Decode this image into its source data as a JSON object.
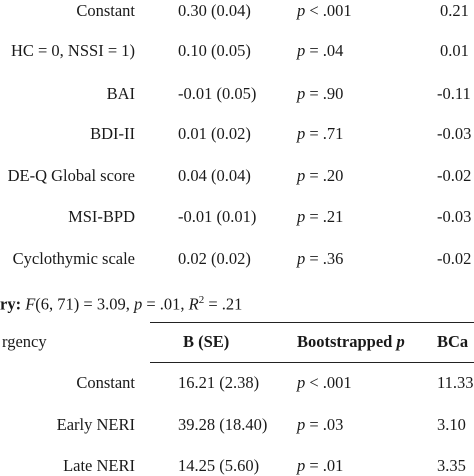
{
  "table": {
    "top_rows": [
      {
        "label": "Constant",
        "b": "0.30 (0.04)",
        "p_prefix": "p",
        "p_val": "< .001",
        "bca": "0.21"
      },
      {
        "label": "HC = 0, NSSI = 1)",
        "b": "0.10 (0.05)",
        "p_prefix": "p",
        "p_val": "= .04",
        "bca": "0.01"
      },
      {
        "label": "BAI",
        "b": "-0.01 (0.05)",
        "p_prefix": "p",
        "p_val": "= .90",
        "bca": "-0.11"
      },
      {
        "label": "BDI-II",
        "b": "0.01 (0.02)",
        "p_prefix": "p",
        "p_val": "= .71",
        "bca": "-0.03"
      },
      {
        "label": "DE-Q Global score",
        "b": "0.04 (0.04)",
        "p_prefix": "p",
        "p_val": "= .20",
        "bca": "-0.02"
      },
      {
        "label": "MSI-BPD",
        "b": "-0.01 (0.01)",
        "p_prefix": "p",
        "p_val": "= .21",
        "bca": "-0.03"
      },
      {
        "label": "Cyclothymic scale",
        "b": "0.02 (0.02)",
        "p_prefix": "p",
        "p_val": "= .36",
        "bca": "-0.02"
      }
    ],
    "summary": {
      "prefix": "ry: ",
      "F": "F",
      "df": "(6, 71) =",
      "fval": " 3.09, ",
      "p": "p",
      "pval": " = .01, ",
      "R": "R",
      "sup": "2",
      "rval": " = .21"
    },
    "section2": {
      "title": "rgency",
      "headers": {
        "b": "B (SE)",
        "p_text": "Bootstrapped ",
        "p_italic": "p",
        "bca": "BCa"
      },
      "rows": [
        {
          "label": "Constant",
          "b": "16.21 (2.38)",
          "p_prefix": "p",
          "p_val": "< .001",
          "bca": "11.33"
        },
        {
          "label": "Early NERI",
          "b": "39.28 (18.40)",
          "p_prefix": "p",
          "p_val": "= .03",
          "bca": "3.10"
        },
        {
          "label": "Late NERI",
          "b": "14.25 (5.60)",
          "p_prefix": "p",
          "p_val": "= .01",
          "bca": "3.35"
        }
      ]
    }
  }
}
